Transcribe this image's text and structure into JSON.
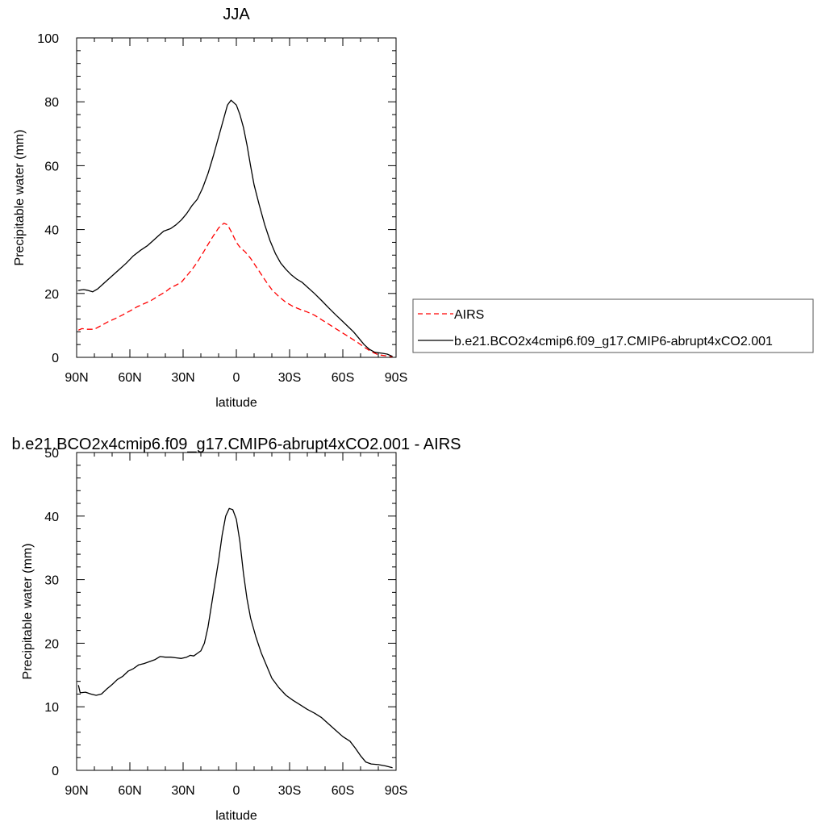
{
  "chart_data": [
    {
      "type": "line",
      "title": "JJA",
      "xlabel": "latitude",
      "ylabel": "Precipitable water (mm)",
      "xlim": [
        90,
        -90
      ],
      "ylim": [
        0,
        100
      ],
      "xticks": [
        90,
        60,
        30,
        0,
        -30,
        -60,
        -90
      ],
      "xtick_labels": [
        "90N",
        "60N",
        "30N",
        "0",
        "30S",
        "60S",
        "90S"
      ],
      "yticks": [
        0,
        20,
        40,
        60,
        80,
        100
      ],
      "ytick_labels": [
        "0",
        "20",
        "40",
        "60",
        "80",
        "100"
      ],
      "grid": false,
      "legend_position": "right",
      "series": [
        {
          "name": "AIRS",
          "color": "#ff0000",
          "dash": "dashed",
          "points": [
            [
              89,
              8.5
            ],
            [
              87,
              9
            ],
            [
              84,
              8.8
            ],
            [
              80,
              8.8
            ],
            [
              76,
              10
            ],
            [
              72,
              11.2
            ],
            [
              68,
              12.2
            ],
            [
              64,
              13.3
            ],
            [
              60,
              14.5
            ],
            [
              56,
              15.8
            ],
            [
              52,
              16.8
            ],
            [
              48,
              17.8
            ],
            [
              44,
              19.2
            ],
            [
              40,
              20.5
            ],
            [
              37,
              21.8
            ],
            [
              34,
              22.6
            ],
            [
              31,
              23.5
            ],
            [
              28,
              25.5
            ],
            [
              25,
              27.5
            ],
            [
              22,
              29.8
            ],
            [
              19,
              32.5
            ],
            [
              16,
              35.3
            ],
            [
              13,
              38
            ],
            [
              10,
              40.5
            ],
            [
              7,
              42
            ],
            [
              5,
              41.5
            ],
            [
              3,
              39.5
            ],
            [
              0,
              36
            ],
            [
              -2,
              34.5
            ],
            [
              -5,
              33
            ],
            [
              -8,
              31
            ],
            [
              -11,
              28.5
            ],
            [
              -14,
              26
            ],
            [
              -17,
              23.5
            ],
            [
              -20,
              21.2
            ],
            [
              -24,
              19
            ],
            [
              -28,
              17.2
            ],
            [
              -32,
              15.9
            ],
            [
              -36,
              15
            ],
            [
              -40,
              14.2
            ],
            [
              -44,
              13.2
            ],
            [
              -48,
              11.8
            ],
            [
              -52,
              10.4
            ],
            [
              -56,
              9
            ],
            [
              -60,
              7.6
            ],
            [
              -64,
              6.2
            ],
            [
              -68,
              4.8
            ],
            [
              -72,
              3.2
            ],
            [
              -76,
              1.8
            ],
            [
              -80,
              0.8
            ],
            [
              -84,
              0.5
            ],
            [
              -88,
              0.2
            ]
          ]
        },
        {
          "name": "b.e21.BCO2x4cmip6.f09_g17.CMIP6-abrupt4xCO2.001",
          "color": "#000000",
          "dash": "solid",
          "points": [
            [
              89,
              21
            ],
            [
              86,
              21.2
            ],
            [
              84,
              21
            ],
            [
              81,
              20.5
            ],
            [
              78,
              21.5
            ],
            [
              74,
              23.5
            ],
            [
              70,
              25.5
            ],
            [
              66,
              27.5
            ],
            [
              62,
              29.5
            ],
            [
              58,
              31.8
            ],
            [
              54,
              33.5
            ],
            [
              50,
              35
            ],
            [
              47,
              36.5
            ],
            [
              44,
              38
            ],
            [
              41,
              39.5
            ],
            [
              37,
              40.3
            ],
            [
              34,
              41.5
            ],
            [
              31,
              43
            ],
            [
              28,
              45
            ],
            [
              25,
              47.5
            ],
            [
              22,
              49.5
            ],
            [
              19,
              53
            ],
            [
              16,
              57.5
            ],
            [
              13,
              63
            ],
            [
              10,
              69
            ],
            [
              7,
              75
            ],
            [
              5,
              79
            ],
            [
              3,
              80.5
            ],
            [
              0,
              79
            ],
            [
              -2,
              76
            ],
            [
              -4,
              72
            ],
            [
              -6,
              66.5
            ],
            [
              -8,
              60
            ],
            [
              -10,
              54
            ],
            [
              -13,
              47.5
            ],
            [
              -16,
              41.5
            ],
            [
              -19,
              36.5
            ],
            [
              -22,
              32.5
            ],
            [
              -25,
              29.5
            ],
            [
              -28,
              27.5
            ],
            [
              -31,
              25.8
            ],
            [
              -34,
              24.5
            ],
            [
              -37,
              23.5
            ],
            [
              -40,
              22
            ],
            [
              -44,
              20
            ],
            [
              -48,
              17.8
            ],
            [
              -52,
              15.5
            ],
            [
              -56,
              13.3
            ],
            [
              -60,
              11.2
            ],
            [
              -63,
              9.6
            ],
            [
              -66,
              8
            ],
            [
              -69,
              6
            ],
            [
              -72,
              4
            ],
            [
              -75,
              2.5
            ],
            [
              -78,
              1.6
            ],
            [
              -82,
              1.3
            ],
            [
              -85,
              1
            ],
            [
              -88,
              0.3
            ]
          ]
        }
      ]
    },
    {
      "type": "line",
      "title": "b.e21.BCO2x4cmip6.f09_g17.CMIP6-abrupt4xCO2.001 - AIRS",
      "xlabel": "latitude",
      "ylabel": "Precipitable water (mm)",
      "xlim": [
        90,
        -90
      ],
      "ylim": [
        0,
        50
      ],
      "xticks": [
        90,
        60,
        30,
        0,
        -30,
        -60,
        -90
      ],
      "xtick_labels": [
        "90N",
        "60N",
        "30N",
        "0",
        "30S",
        "60S",
        "90S"
      ],
      "yticks": [
        0,
        10,
        20,
        30,
        40,
        50
      ],
      "ytick_labels": [
        "0",
        "10",
        "20",
        "30",
        "40",
        "50"
      ],
      "grid": false,
      "series": [
        {
          "color": "#000000",
          "dash": "solid",
          "points": [
            [
              89,
              13.4
            ],
            [
              88,
              12.2
            ],
            [
              85,
              12.3
            ],
            [
              82,
              12
            ],
            [
              79,
              11.8
            ],
            [
              76,
              12
            ],
            [
              73,
              12.8
            ],
            [
              70,
              13.5
            ],
            [
              67,
              14.3
            ],
            [
              64,
              14.8
            ],
            [
              61,
              15.6
            ],
            [
              58,
              16
            ],
            [
              55,
              16.6
            ],
            [
              52,
              16.8
            ],
            [
              49,
              17.1
            ],
            [
              46,
              17.4
            ],
            [
              43,
              17.9
            ],
            [
              40,
              17.8
            ],
            [
              37,
              17.8
            ],
            [
              34,
              17.7
            ],
            [
              31,
              17.6
            ],
            [
              28,
              17.8
            ],
            [
              26,
              18.1
            ],
            [
              24,
              18
            ],
            [
              22,
              18.4
            ],
            [
              20,
              18.8
            ],
            [
              18,
              20
            ],
            [
              16,
              22.5
            ],
            [
              14,
              26
            ],
            [
              12,
              29.5
            ],
            [
              10,
              33
            ],
            [
              8,
              37
            ],
            [
              6,
              40
            ],
            [
              4,
              41.2
            ],
            [
              2,
              41
            ],
            [
              0,
              39.5
            ],
            [
              -2,
              36
            ],
            [
              -4,
              31
            ],
            [
              -6,
              27
            ],
            [
              -8,
              24
            ],
            [
              -11,
              21
            ],
            [
              -14,
              18.5
            ],
            [
              -17,
              16.5
            ],
            [
              -20,
              14.5
            ],
            [
              -24,
              13
            ],
            [
              -28,
              11.8
            ],
            [
              -32,
              11
            ],
            [
              -36,
              10.3
            ],
            [
              -40,
              9.6
            ],
            [
              -44,
              9
            ],
            [
              -48,
              8.3
            ],
            [
              -52,
              7.3
            ],
            [
              -56,
              6.3
            ],
            [
              -60,
              5.3
            ],
            [
              -64,
              4.6
            ],
            [
              -67,
              3.5
            ],
            [
              -70,
              2.3
            ],
            [
              -73,
              1.3
            ],
            [
              -76,
              1
            ],
            [
              -80,
              0.9
            ],
            [
              -84,
              0.7
            ],
            [
              -88,
              0.4
            ]
          ]
        }
      ]
    }
  ]
}
